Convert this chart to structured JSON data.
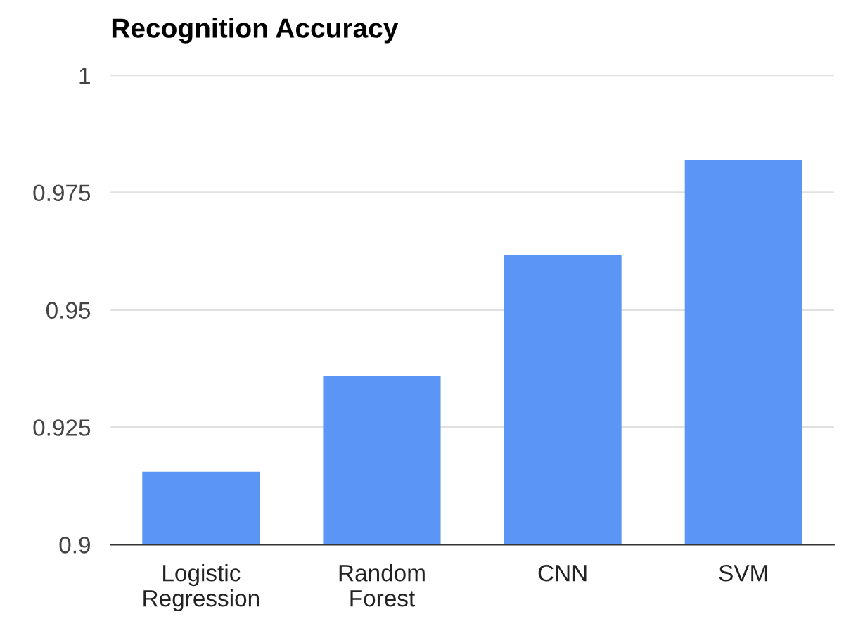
{
  "chart_data": {
    "type": "bar",
    "title": "Recognition Accuracy",
    "categories": [
      "Logistic Regression",
      "Random Forest",
      "CNN",
      "SVM"
    ],
    "values": [
      0.9155,
      0.936,
      0.9616,
      0.982
    ],
    "color": "#5b95f5",
    "ylim": [
      0.9,
      1
    ],
    "yticks": [
      {
        "value": 0.9,
        "label": "0.9"
      },
      {
        "value": 0.925,
        "label": "0.925"
      },
      {
        "value": 0.95,
        "label": "0.95"
      },
      {
        "value": 0.975,
        "label": "0.975"
      },
      {
        "value": 1,
        "label": "1"
      }
    ],
    "grid": "y"
  }
}
